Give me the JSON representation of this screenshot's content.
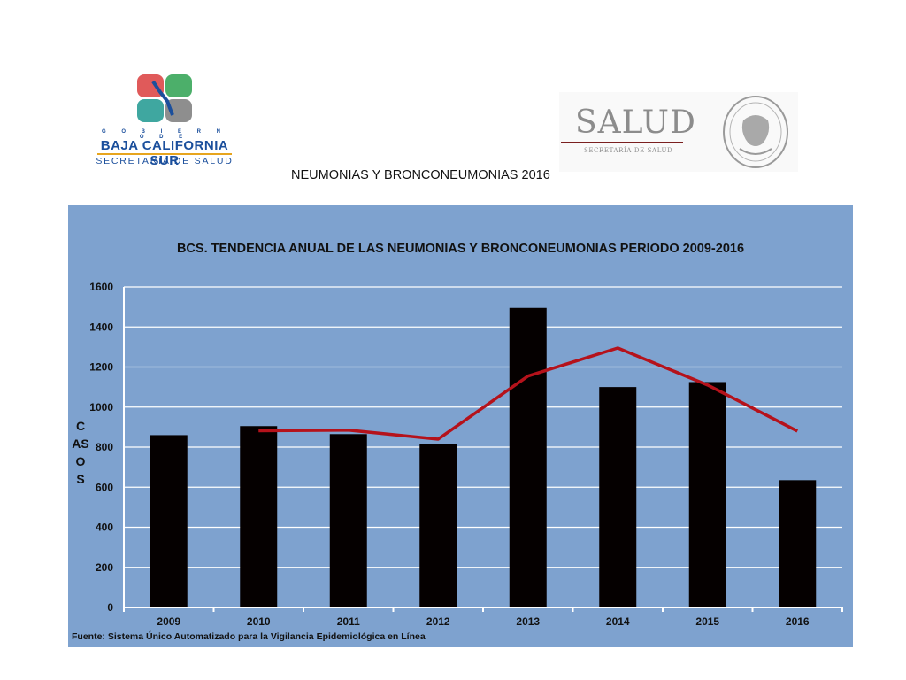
{
  "header": {
    "gov_text": "G O B I E R N O D E",
    "state_text": "BAJA CALIFORNIA SUR",
    "dept_text": "SECRETARÍA DE SALUD",
    "salud_word": "SALUD",
    "salud_sub": "SECRETARÍA DE SALUD",
    "page_title": "NEUMONIAS Y BRONCONEUMONIAS 2016"
  },
  "colors": {
    "panel_bg": "#7ea2cf",
    "bar_fill": "#050000",
    "trend_line": "#b5121b",
    "grid": "#ffffff"
  },
  "chart_data": {
    "type": "bar",
    "title": "BCS. TENDENCIA ANUAL DE LAS NEUMONIAS Y BRONCONEUMONIAS PERIODO 2009-2016",
    "xlabel": "",
    "ylabel": "CASOS",
    "categories": [
      "2009",
      "2010",
      "2011",
      "2012",
      "2013",
      "2014",
      "2015",
      "2016"
    ],
    "series": [
      {
        "type": "bar",
        "values": [
          860,
          905,
          865,
          815,
          1495,
          1100,
          1125,
          635
        ]
      },
      {
        "type": "line",
        "x": [
          "2010",
          "2011",
          "2012",
          "2013",
          "2014",
          "2015",
          "2016"
        ],
        "values": [
          882,
          885,
          840,
          1155,
          1295,
          1110,
          880
        ]
      }
    ],
    "ylim": [
      0,
      1600
    ],
    "yticks": [
      0,
      200,
      400,
      600,
      800,
      1000,
      1200,
      1400,
      1600
    ],
    "grid": true,
    "legend": "none",
    "source": "Fuente: Sistema Único Automatizado para la Vigilancia Epidemiológica en Línea"
  }
}
